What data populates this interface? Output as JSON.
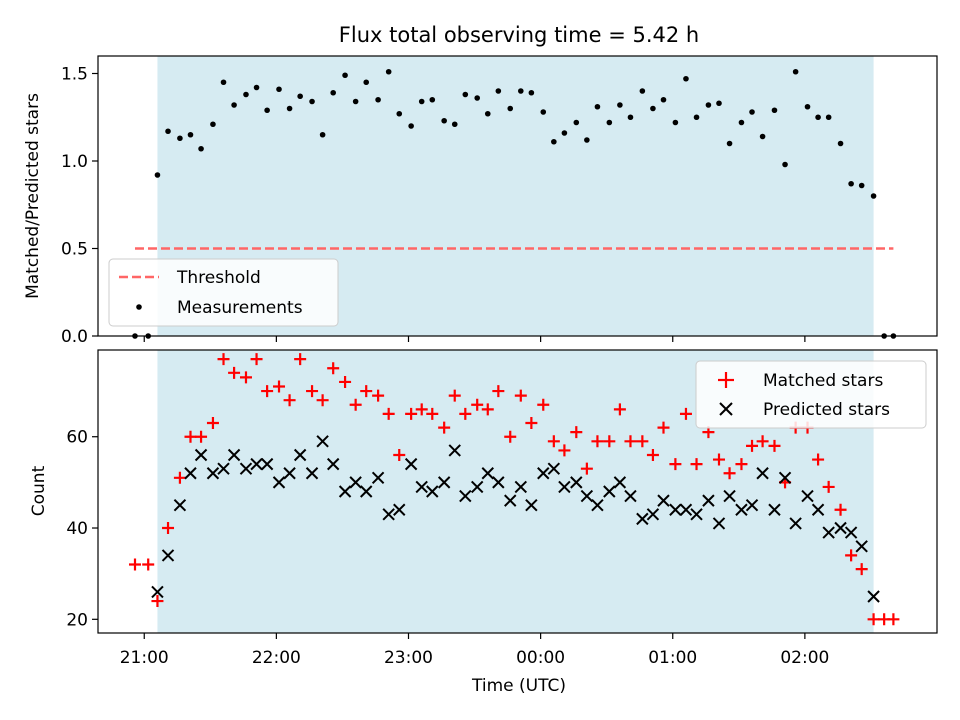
{
  "chart_data": [
    {
      "type": "scatter",
      "title": "Flux total observing time = 5.42 h",
      "ylabel": "Matched/Predicted stars",
      "xlim": [
        -0.35,
        6.0
      ],
      "ylim": [
        0.0,
        1.6
      ],
      "x_unit": "hours since 21:00 UTC",
      "yticks": [
        0.0,
        0.5,
        1.0,
        1.5
      ],
      "ytick_labels": [
        "0.0",
        "0.5",
        "1.0",
        "1.5"
      ],
      "shaded_interval": [
        0.1,
        5.52
      ],
      "shaded_color": "#add8e6",
      "threshold": {
        "name": "Threshold",
        "value": 0.5,
        "x_range": [
          -0.07,
          5.67
        ],
        "color": "#ff6666"
      },
      "series": [
        {
          "name": "Measurements",
          "color": "#000000",
          "x": [
            -0.07,
            0.03,
            0.1,
            0.18,
            0.27,
            0.35,
            0.43,
            0.52,
            0.6,
            0.68,
            0.77,
            0.85,
            0.93,
            1.02,
            1.1,
            1.18,
            1.27,
            1.35,
            1.43,
            1.52,
            1.6,
            1.68,
            1.77,
            1.85,
            1.93,
            2.02,
            2.1,
            2.18,
            2.27,
            2.35,
            2.43,
            2.52,
            2.6,
            2.68,
            2.77,
            2.85,
            2.93,
            3.02,
            3.1,
            3.18,
            3.27,
            3.35,
            3.43,
            3.52,
            3.6,
            3.68,
            3.77,
            3.85,
            3.93,
            4.02,
            4.1,
            4.18,
            4.27,
            4.35,
            4.43,
            4.52,
            4.6,
            4.68,
            4.77,
            4.85,
            4.93,
            5.02,
            5.1,
            5.18,
            5.27,
            5.35,
            5.43,
            5.52,
            5.6,
            5.67
          ],
          "y": [
            0.0,
            0.0,
            0.92,
            1.17,
            1.13,
            1.15,
            1.07,
            1.21,
            1.45,
            1.32,
            1.38,
            1.42,
            1.29,
            1.41,
            1.3,
            1.37,
            1.34,
            1.15,
            1.39,
            1.49,
            1.34,
            1.45,
            1.35,
            1.51,
            1.27,
            1.2,
            1.34,
            1.35,
            1.23,
            1.21,
            1.38,
            1.36,
            1.27,
            1.4,
            1.3,
            1.4,
            1.39,
            1.28,
            1.11,
            1.16,
            1.22,
            1.12,
            1.31,
            1.22,
            1.32,
            1.25,
            1.4,
            1.3,
            1.35,
            1.22,
            1.47,
            1.25,
            1.32,
            1.33,
            1.1,
            1.22,
            1.28,
            1.14,
            1.29,
            0.98,
            1.51,
            1.31,
            1.25,
            1.25,
            1.1,
            0.87,
            0.86,
            0.8,
            0.0,
            0.0
          ]
        }
      ],
      "legend": {
        "location": "lower-left",
        "entries": [
          "Threshold",
          "Measurements"
        ]
      }
    },
    {
      "type": "scatter",
      "xlabel": "Time (UTC)",
      "ylabel": "Count",
      "xlim": [
        -0.35,
        6.0
      ],
      "ylim": [
        17,
        79
      ],
      "x_unit": "hours since 21:00 UTC",
      "xticks": [
        0,
        1,
        2,
        3,
        4,
        5
      ],
      "xtick_labels": [
        "21:00",
        "22:00",
        "23:00",
        "00:00",
        "01:00",
        "02:00"
      ],
      "yticks": [
        20,
        40,
        60
      ],
      "ytick_labels": [
        "20",
        "40",
        "60"
      ],
      "shaded_interval": [
        0.1,
        5.52
      ],
      "series": [
        {
          "name": "Matched stars",
          "marker": "plus",
          "color": "#ff0000",
          "x": [
            -0.07,
            0.03,
            0.1,
            0.18,
            0.27,
            0.35,
            0.43,
            0.52,
            0.6,
            0.68,
            0.77,
            0.85,
            0.93,
            1.02,
            1.1,
            1.18,
            1.27,
            1.35,
            1.43,
            1.52,
            1.6,
            1.68,
            1.77,
            1.85,
            1.93,
            2.02,
            2.1,
            2.18,
            2.27,
            2.35,
            2.43,
            2.52,
            2.6,
            2.68,
            2.77,
            2.85,
            2.93,
            3.02,
            3.1,
            3.18,
            3.27,
            3.35,
            3.43,
            3.52,
            3.6,
            3.68,
            3.77,
            3.85,
            3.93,
            4.02,
            4.1,
            4.18,
            4.27,
            4.35,
            4.43,
            4.52,
            4.6,
            4.68,
            4.77,
            4.85,
            4.93,
            5.02,
            5.1,
            5.18,
            5.27,
            5.35,
            5.43,
            5.52,
            5.6,
            5.67
          ],
          "y": [
            32,
            32,
            24,
            40,
            51,
            60,
            60,
            63,
            77,
            74,
            73,
            77,
            70,
            71,
            68,
            77,
            70,
            68,
            75,
            72,
            67,
            70,
            69,
            65,
            56,
            65,
            66,
            65,
            62,
            69,
            65,
            67,
            66,
            70,
            60,
            69,
            63,
            67,
            59,
            57,
            61,
            53,
            59,
            59,
            66,
            59,
            59,
            56,
            62,
            54,
            65,
            54,
            61,
            55,
            52,
            54,
            58,
            59,
            58,
            50,
            62,
            62,
            55,
            49,
            44,
            34,
            31,
            20,
            20,
            20
          ]
        },
        {
          "name": "Predicted stars",
          "marker": "x",
          "color": "#000000",
          "x": [
            0.1,
            0.18,
            0.27,
            0.35,
            0.43,
            0.52,
            0.6,
            0.68,
            0.77,
            0.85,
            0.93,
            1.02,
            1.1,
            1.18,
            1.27,
            1.35,
            1.43,
            1.52,
            1.6,
            1.68,
            1.77,
            1.85,
            1.93,
            2.02,
            2.1,
            2.18,
            2.27,
            2.35,
            2.43,
            2.52,
            2.6,
            2.68,
            2.77,
            2.85,
            2.93,
            3.02,
            3.1,
            3.18,
            3.27,
            3.35,
            3.43,
            3.52,
            3.6,
            3.68,
            3.77,
            3.85,
            3.93,
            4.02,
            4.1,
            4.18,
            4.27,
            4.35,
            4.43,
            4.52,
            4.6,
            4.68,
            4.77,
            4.85,
            4.93,
            5.02,
            5.1,
            5.18,
            5.27,
            5.35,
            5.43,
            5.52
          ],
          "y": [
            26,
            34,
            45,
            52,
            56,
            52,
            53,
            56,
            53,
            54,
            54,
            50,
            52,
            56,
            52,
            59,
            54,
            48,
            50,
            48,
            51,
            43,
            44,
            54,
            49,
            48,
            50,
            57,
            47,
            49,
            52,
            50,
            46,
            49,
            45,
            52,
            53,
            49,
            50,
            47,
            45,
            48,
            50,
            47,
            42,
            43,
            46,
            44,
            44,
            43,
            46,
            41,
            47,
            44,
            45,
            52,
            44,
            51,
            41,
            47,
            44,
            39,
            40,
            39,
            36,
            25
          ]
        }
      ],
      "legend": {
        "location": "upper-right",
        "entries": [
          "Matched stars",
          "Predicted stars"
        ]
      }
    }
  ]
}
